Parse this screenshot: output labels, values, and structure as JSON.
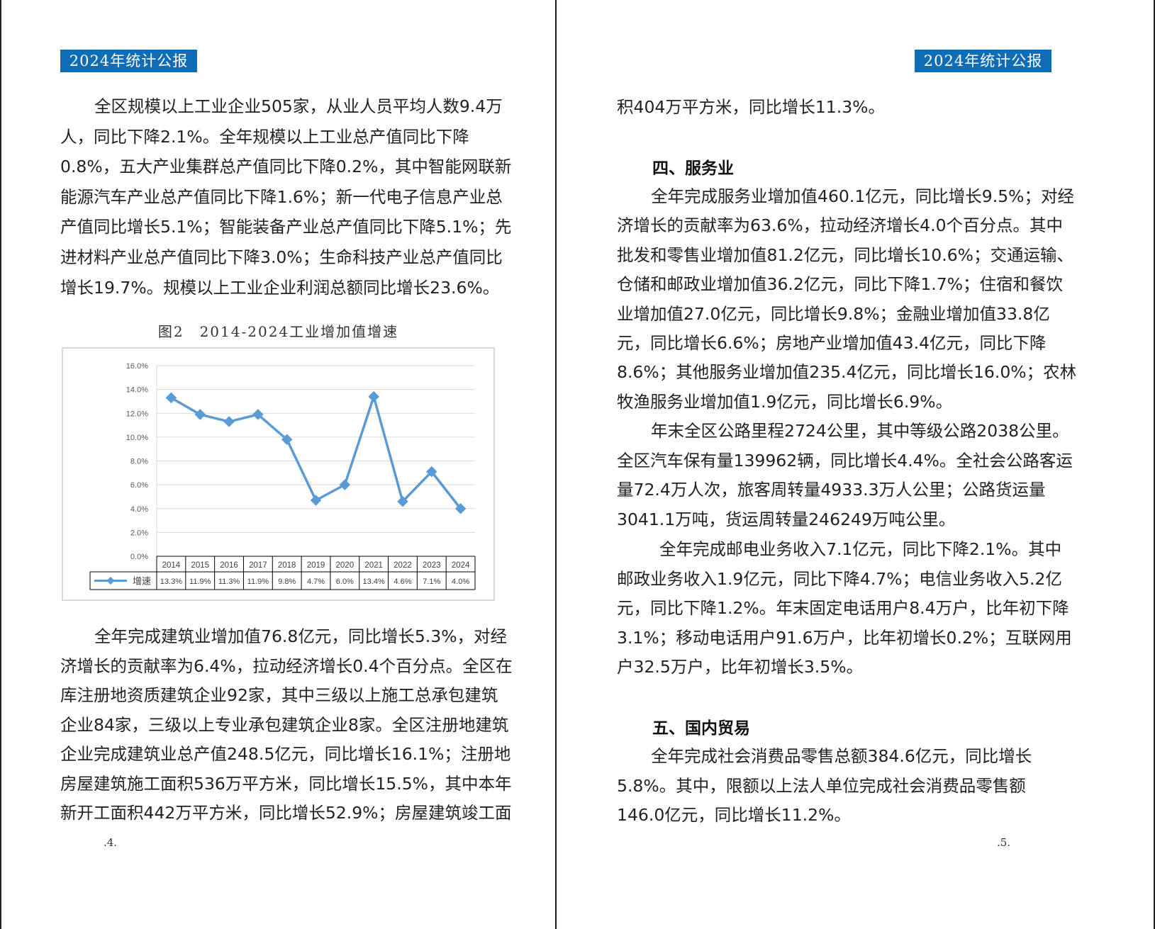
{
  "header": {
    "left_badge": "2024年统计公报",
    "right_badge": "2024年统计公报"
  },
  "left_page": {
    "para1": [
      "全区规模以上工业企业505家，从业人员平均人数9.4万",
      "人，同比下降2.1%。全年规模以上工业总产值同比下降",
      "0.8%，五大产业集群总产值同比下降0.2%，其中智能网联新",
      "能源汽车产业总产值同比下降1.6%；新一代电子信息产业总",
      "产值同比增长5.1%；智能装备产业总产值同比下降5.1%；先",
      "进材料产业总产值同比下降3.0%；生命科技产业总产值同比",
      "增长19.7%。规模以上工业企业利润总额同比增长23.6%。"
    ],
    "para2": [
      "全年完成建筑业增加值76.8亿元，同比增长5.3%，对经",
      "济增长的贡献率为6.4%，拉动经济增长0.4个百分点。全区在",
      "库注册地资质建筑企业92家，其中三级以上施工总承包建筑",
      "企业84家，三级以上专业承包建筑企业8家。全区注册地建筑",
      "企业完成建筑业总产值248.5亿元，同比增长16.1%；注册地",
      "房屋建筑施工面积536万平方米，同比增长15.5%，其中本年",
      "新开工面积442万平方米，同比增长52.9%；房屋建筑竣工面"
    ],
    "page_number": ".4."
  },
  "right_page": {
    "para0": [
      "积404万平方米，同比增长11.3%。"
    ],
    "heading4": "四、服务业",
    "para3": [
      "全年完成服务业增加值460.1亿元，同比增长9.5%；对经",
      "济增长的贡献率为63.6%，拉动经济增长4.0个百分点。其中",
      "批发和零售业增加值81.2亿元，同比增长10.6%；交通运输、",
      "仓储和邮政业增加值36.2亿元，同比下降1.7%；住宿和餐饮",
      "业增加值27.0亿元，同比增长9.8%；金融业增加值33.8亿",
      "元，同比增长6.6%；房地产业增加值43.4亿元，同比下降",
      "8.6%；其他服务业增加值235.4亿元，同比增长16.0%；农林",
      "牧渔服务业增加值1.9亿元，同比增长6.9%。"
    ],
    "para4": [
      "年末全区公路里程2724公里，其中等级公路2038公里。",
      "全区汽车保有量139962辆，同比增长4.4%。全社会公路客运",
      "量72.4万人次，旅客周转量4933.3万人公里；公路货运量",
      "3041.1万吨，货运周转量246249万吨公里。"
    ],
    "para5": [
      "全年完成邮电业务收入7.1亿元，同比下降2.1%。其中",
      "邮政业务收入1.9亿元，同比下降4.7%；电信业务收入5.2亿",
      "元，同比下降1.2%。年末固定电话用户8.4万户，比年初下降",
      "3.1%；移动电话用户91.6万户，比年初增长0.2%；互联网用",
      "户32.5万户，比年初增长3.5%。"
    ],
    "heading5": "五、国内贸易",
    "para6": [
      "全年完成社会消费品零售总额384.6亿元，同比增长",
      "5.8%。其中，限额以上法人单位完成社会消费品零售额",
      "146.0亿元，同比增长11.2%。"
    ],
    "page_number": ".5."
  },
  "chart_data": {
    "type": "line",
    "title": "图2　2014-2024工业增加值增速",
    "categories": [
      "2014",
      "2015",
      "2016",
      "2017",
      "2018",
      "2019",
      "2020",
      "2021",
      "2022",
      "2023",
      "2024"
    ],
    "series": [
      {
        "name": "增速",
        "values": [
          13.3,
          11.9,
          11.3,
          11.9,
          9.8,
          4.7,
          6.0,
          13.4,
          4.6,
          7.1,
          4.0
        ],
        "labels": [
          "13.3%",
          "11.9%",
          "11.3%",
          "11.9%",
          "9.8%",
          "4.7%",
          "6.0%",
          "13.4%",
          "4.6%",
          "7.1%",
          "4.0%"
        ]
      }
    ],
    "yticks": [
      "0.0%",
      "2.0%",
      "4.0%",
      "6.0%",
      "8.0%",
      "10.0%",
      "12.0%",
      "14.0%",
      "16.0%"
    ],
    "ylim": [
      0,
      16
    ],
    "grid": true,
    "legend": "data-table",
    "color": "#5b9bd5"
  }
}
